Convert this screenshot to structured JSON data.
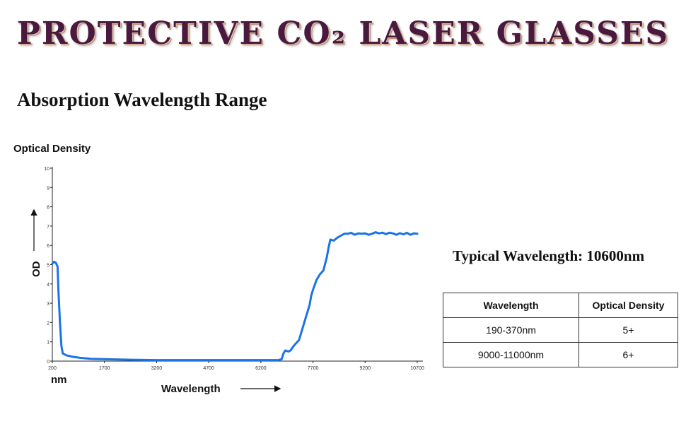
{
  "header": {
    "title": "PROTECTIVE CO₂ LASER  GLASSES",
    "section_title": "Absorption Wavelength Range"
  },
  "chart_data": {
    "type": "line",
    "title": "",
    "y_title_top": "Optical Density",
    "ylabel": "OD",
    "xlabel": "Wavelength",
    "x_unit_label": "nm",
    "xlim": [
      200,
      10700
    ],
    "ylim": [
      0,
      10
    ],
    "x_ticks": [
      200,
      1700,
      3200,
      4700,
      6200,
      7700,
      9200,
      10700
    ],
    "y_ticks": [
      0,
      1,
      2,
      3,
      4,
      5,
      6,
      7,
      8,
      9,
      10
    ],
    "series": [
      {
        "name": "Optical Density",
        "color": "#1a73e8",
        "x": [
          200,
          250,
          300,
          350,
          380,
          420,
          460,
          500,
          600,
          800,
          1000,
          1300,
          1700,
          2500,
          3200,
          4000,
          4700,
          5500,
          6200,
          6700,
          6800,
          6850,
          6900,
          7000,
          7050,
          7150,
          7250,
          7300,
          7400,
          7500,
          7600,
          7650,
          7700,
          7800,
          7900,
          8000,
          8100,
          8150,
          8200,
          8300,
          8400,
          8500,
          8600,
          8700,
          8800,
          8900,
          9000,
          9100,
          9200,
          9300,
          9400,
          9500,
          9600,
          9700,
          9800,
          9900,
          10000,
          10100,
          10200,
          10300,
          10400,
          10500,
          10600,
          10700
        ],
        "y": [
          5.05,
          5.15,
          5.1,
          4.9,
          3.5,
          2.0,
          0.8,
          0.4,
          0.3,
          0.22,
          0.17,
          0.12,
          0.1,
          0.07,
          0.05,
          0.05,
          0.05,
          0.05,
          0.05,
          0.05,
          0.1,
          0.4,
          0.55,
          0.5,
          0.55,
          0.8,
          1.0,
          1.1,
          1.7,
          2.3,
          2.9,
          3.4,
          3.7,
          4.2,
          4.5,
          4.7,
          5.4,
          5.9,
          6.3,
          6.25,
          6.4,
          6.5,
          6.6,
          6.6,
          6.65,
          6.55,
          6.62,
          6.6,
          6.62,
          6.55,
          6.6,
          6.68,
          6.62,
          6.66,
          6.58,
          6.66,
          6.62,
          6.55,
          6.63,
          6.57,
          6.65,
          6.55,
          6.62,
          6.6
        ]
      }
    ]
  },
  "typical_wavelength": "Typical Wavelength: 10600nm",
  "table": {
    "headers": [
      "Wavelength",
      "Optical Density"
    ],
    "rows": [
      [
        "190-370nm",
        "5+"
      ],
      [
        "9000-11000nm",
        "6+"
      ]
    ]
  }
}
